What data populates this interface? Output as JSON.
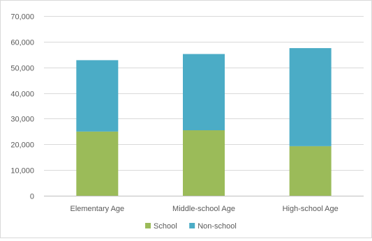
{
  "chart_data": {
    "type": "bar",
    "stacked": true,
    "title": "",
    "xlabel": "",
    "ylabel": "",
    "categories": [
      "Elementary Age",
      "Middle-school Age",
      "High-school Age"
    ],
    "series": [
      {
        "name": "School",
        "values": [
          25000,
          25500,
          19300
        ],
        "color": "#9bbb59"
      },
      {
        "name": "Non-school",
        "values": [
          27800,
          29700,
          38200
        ],
        "color": "#4bacc6"
      }
    ],
    "ylim": [
      0,
      70000
    ],
    "yticks": [
      0,
      10000,
      20000,
      30000,
      40000,
      50000,
      60000,
      70000
    ],
    "ytick_labels": [
      "0",
      "10,000",
      "20,000",
      "30,000",
      "40,000",
      "50,000",
      "60,000",
      "70,000"
    ],
    "grid": true,
    "legend_position": "bottom"
  }
}
